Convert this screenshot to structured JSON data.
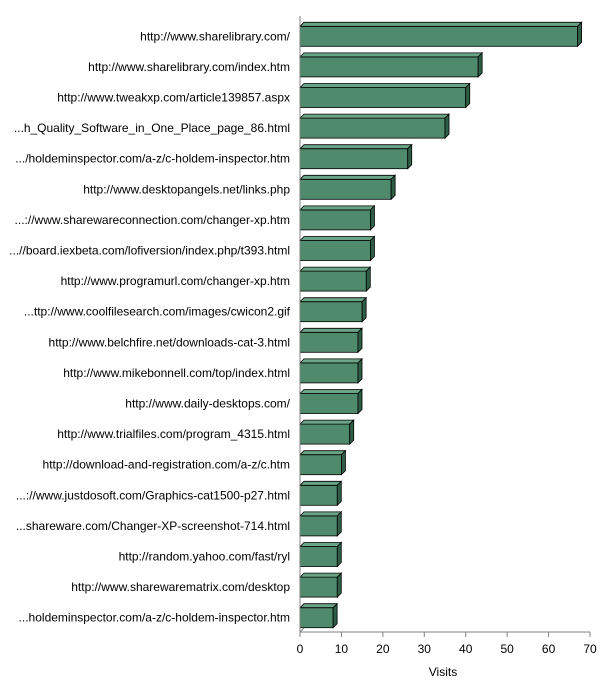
{
  "chart_data": {
    "type": "bar",
    "orientation": "horizontal",
    "style": "3d",
    "categories": [
      "http://www.sharelibrary.com/",
      "http://www.sharelibrary.com/index.htm",
      "http://www.tweakxp.com/article139857.aspx",
      "...h_Quality_Software_in_One_Place_page_86.html",
      ".../holdeminspector.com/a-z/c-holdem-inspector.htm",
      "http://www.desktopangels.net/links.php",
      "...://www.sharewareconnection.com/changer-xp.htm",
      "...//board.iexbeta.com/lofiversion/index.php/t393.html",
      "http://www.programurl.com/changer-xp.htm",
      "...ttp://www.coolfilesearch.com/images/cwicon2.gif",
      "http://www.belchfire.net/downloads-cat-3.html",
      "http://www.mikebonnell.com/top/index.html",
      "http://www.daily-desktops.com/",
      "http://www.trialfiles.com/program_4315.html",
      "http://download-and-registration.com/a-z/c.htm",
      "...://www.justdosoft.com/Graphics-cat1500-p27.html",
      "...shareware.com/Changer-XP-screenshot-714.html",
      "http://random.yahoo.com/fast/ryl",
      "http://www.sharewarematrix.com/desktop",
      "...holdeminspector.com/a-z/c-holdem-inspector.htm"
    ],
    "values": [
      67,
      43,
      40,
      35,
      26,
      22,
      17,
      17,
      16,
      15,
      14,
      14,
      14,
      12,
      10,
      9,
      9,
      9,
      9,
      8
    ],
    "xlabel": "Visits",
    "xlim": [
      0,
      70
    ],
    "xticks": [
      0,
      10,
      20,
      30,
      40,
      50,
      60,
      70
    ],
    "grid": false,
    "legend": "none",
    "colors": {
      "bar_front": "#4f8a6c",
      "bar_top": "#6aa486",
      "bar_side": "#2f5e47",
      "outline": "#000000",
      "axis": "#808080"
    }
  }
}
